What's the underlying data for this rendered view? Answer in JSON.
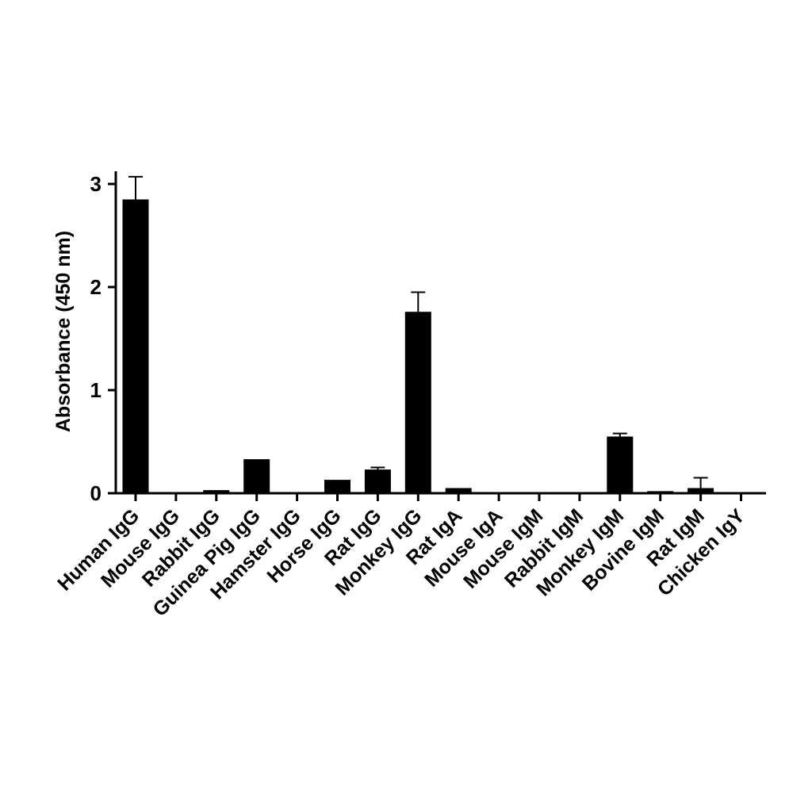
{
  "chart_data": {
    "type": "bar",
    "title": "",
    "xlabel": "",
    "ylabel": "Absorbance (450 nm)",
    "ylim": [
      0,
      3.1
    ],
    "yticks": [
      "0",
      "1",
      "2",
      "3"
    ],
    "categories": [
      "Human IgG",
      "Mouse IgG",
      "Rabbit IgG",
      "Guinea Pig IgG",
      "Hamster IgG",
      "Horse IgG",
      "Rat IgG",
      "Monkey IgG",
      "Rat IgA",
      "Mouse IgA",
      "Mouse IgM",
      "Rabbit IgM",
      "Monkey IgM",
      "Bovine IgM",
      "Rat IgM",
      "Chicken IgY"
    ],
    "values": [
      2.85,
      0.01,
      0.03,
      0.33,
      0.01,
      0.13,
      0.23,
      1.76,
      0.05,
      0.0,
      0.0,
      0.01,
      0.55,
      0.02,
      0.05,
      0.0
    ],
    "errors": [
      0.22,
      0.0,
      0.0,
      0.0,
      0.0,
      0.0,
      0.02,
      0.19,
      0.0,
      0.0,
      0.0,
      0.0,
      0.03,
      0.0,
      0.1,
      0.0
    ],
    "bar_color": "#000000",
    "grid": false,
    "legend": "none"
  }
}
